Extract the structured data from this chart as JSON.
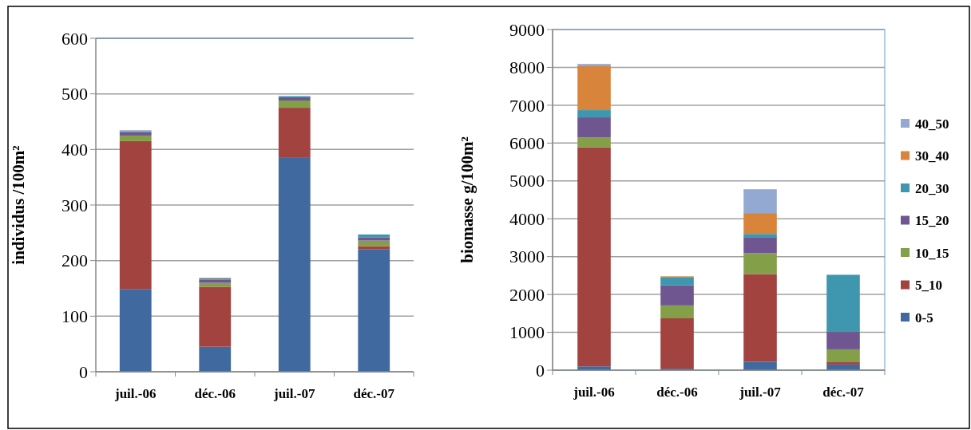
{
  "chart_data": [
    {
      "type": "bar",
      "stacked": true,
      "ylabel": "individus /100m²",
      "categories": [
        "juil.-06",
        "déc.-06",
        "juil.-07",
        "déc.-07"
      ],
      "ylim": [
        0,
        600
      ],
      "yticks": [
        0,
        100,
        200,
        300,
        400,
        500,
        600
      ],
      "grid": "y",
      "legend": false,
      "series": [
        {
          "color": "#4069a0",
          "values": [
            149,
            45,
            386,
            220
          ]
        },
        {
          "color": "#a24340",
          "values": [
            266,
            108,
            89,
            6
          ]
        },
        {
          "color": "#839f48",
          "values": [
            10,
            7,
            13,
            10
          ]
        },
        {
          "color": "#6f5690",
          "values": [
            6,
            6,
            6,
            6
          ]
        },
        {
          "color": "#3e97ae",
          "values": [
            2,
            2,
            2,
            5
          ]
        },
        {
          "color": "#d9843b",
          "values": [
            1,
            1,
            0,
            0
          ]
        },
        {
          "color": "#94a9d1",
          "values": [
            1,
            0,
            0,
            0
          ]
        }
      ]
    },
    {
      "type": "bar",
      "stacked": true,
      "ylabel": "biomasse g/100m²",
      "categories": [
        "juil.-06",
        "déc.-06",
        "juil.-07",
        "déc.-07"
      ],
      "ylim": [
        0,
        9000
      ],
      "yticks": [
        0,
        1000,
        2000,
        3000,
        4000,
        5000,
        6000,
        7000,
        8000,
        9000
      ],
      "grid": "y",
      "legend": "right",
      "series": [
        {
          "name": "0-5",
          "color": "#4069a0",
          "values": [
            100,
            40,
            220,
            150
          ]
        },
        {
          "name": "5_10",
          "color": "#a24340",
          "values": [
            5790,
            1330,
            2320,
            60
          ]
        },
        {
          "name": "10_15",
          "color": "#839f48",
          "values": [
            260,
            340,
            550,
            340
          ]
        },
        {
          "name": "15_20",
          "color": "#6f5690",
          "values": [
            530,
            530,
            410,
            460
          ]
        },
        {
          "name": "20_30",
          "color": "#3e97ae",
          "values": [
            190,
            220,
            100,
            1510
          ]
        },
        {
          "name": "30_40",
          "color": "#d9843b",
          "values": [
            1160,
            20,
            550,
            0
          ]
        },
        {
          "name": "40_50",
          "color": "#94a9d1",
          "values": [
            60,
            0,
            630,
            0
          ]
        }
      ]
    }
  ]
}
